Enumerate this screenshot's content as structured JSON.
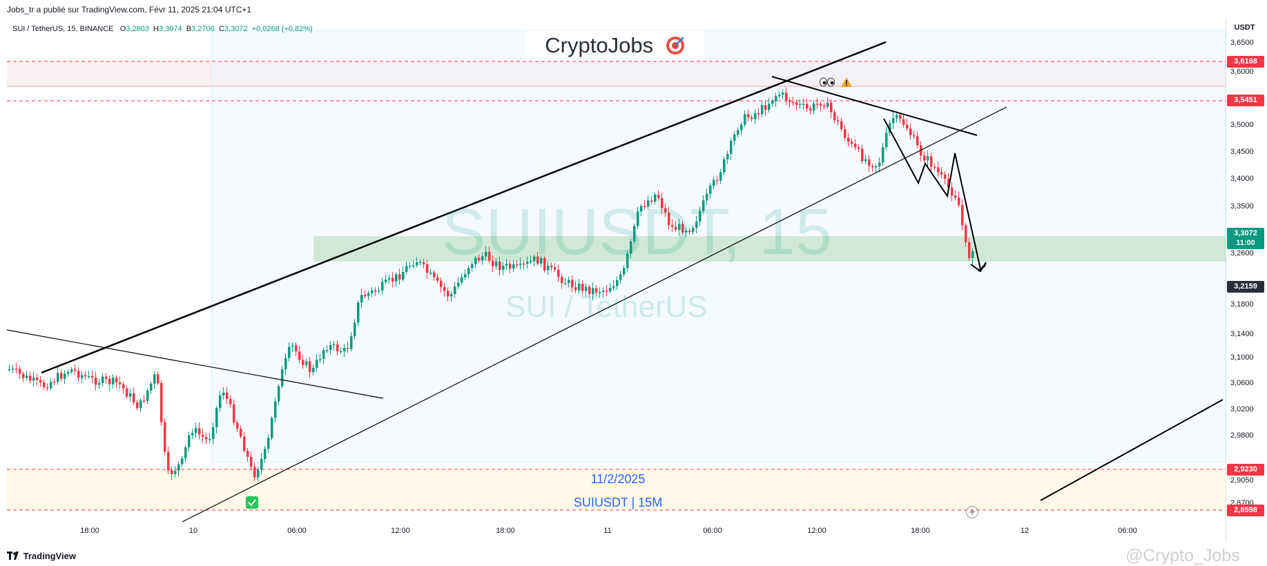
{
  "header": {
    "published": "Jobs_tr a publié sur TradingView.com, Févr 11, 2025 21:04 UTC+1"
  },
  "legend": {
    "symbol": "SUI / TetherUS, 15, BINANCE",
    "o_label": "O",
    "o_value": "3,2803",
    "h_label": "H",
    "h_value": "3,3074",
    "b_label": "B",
    "b_value": "3,2706",
    "c_label": "C",
    "c_value": "3,3072",
    "change": "+0,0268 (+0,82%)"
  },
  "brand": {
    "title": "CryptoJobs",
    "icon": "target-icon"
  },
  "watermark": {
    "ticker": "SUIUSDT, 15",
    "pair": "SUI / TetherUS"
  },
  "annotations": {
    "date": "11/2/2025",
    "label": "SUIUSDT | 15M"
  },
  "price_axis": {
    "unit": "USDT",
    "ticks": [
      "3,6500",
      "3,6000",
      "3,5000",
      "3,4500",
      "3,4000",
      "3,3500",
      "3,2600",
      "3,1800",
      "3,1400",
      "3,1000",
      "3,0600",
      "3,0200",
      "2,9800",
      "2,9050",
      "2,8700"
    ],
    "tags": {
      "r1": "3,6168",
      "r2": "3,5451",
      "current": "3,3072",
      "countdown": "11:00",
      "support": "3,2159",
      "s1": "2,9230",
      "s2": "2,8598"
    }
  },
  "time_axis": {
    "labels": [
      "18:00",
      "10",
      "06:00",
      "12:00",
      "18:00",
      "11",
      "06:00",
      "12:00",
      "18:00",
      "12",
      "06:00"
    ]
  },
  "footer": {
    "brand": "TradingView",
    "watermark": "@Crypto_Jobs"
  },
  "colors": {
    "up": "#089981",
    "down": "#f23645",
    "support_zone": "#c8e6c9",
    "level_line": "#f23645"
  }
}
